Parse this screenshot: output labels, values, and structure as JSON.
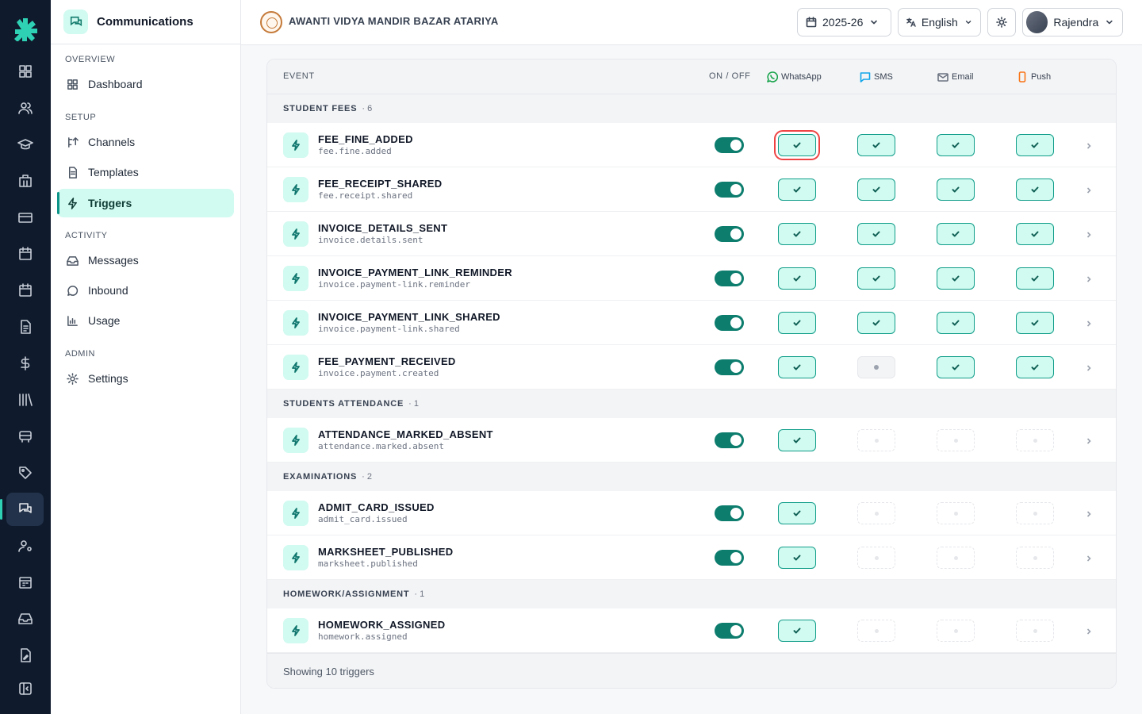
{
  "sidebar": {
    "title": "Communications",
    "sections": {
      "overview": "OVERVIEW",
      "setup": "SETUP",
      "activity": "ACTIVITY",
      "admin": "ADMIN"
    },
    "items": {
      "dashboard": "Dashboard",
      "channels": "Channels",
      "templates": "Templates",
      "triggers": "Triggers",
      "messages": "Messages",
      "inbound": "Inbound",
      "usage": "Usage",
      "settings": "Settings"
    },
    "active": "triggers"
  },
  "header": {
    "school_name": "AWANTI VIDYA MANDIR BAZAR ATARIYA",
    "year": "2025-26",
    "language": "English",
    "user": "Rajendra"
  },
  "table": {
    "columns": {
      "event": "EVENT",
      "onoff": "ON / OFF",
      "whatsapp": "WhatsApp",
      "sms": "SMS",
      "email": "Email",
      "push": "Push"
    },
    "groups": [
      {
        "name": "STUDENT FEES",
        "count": "· 6"
      },
      {
        "name": "STUDENTS ATTENDANCE",
        "count": "· 1"
      },
      {
        "name": "EXAMINATIONS",
        "count": "· 2"
      },
      {
        "name": "HOMEWORK/ASSIGNMENT",
        "count": "· 1"
      }
    ],
    "rows": [
      {
        "name": "FEE_FINE_ADDED",
        "key": "fee.fine.added",
        "enabled": true,
        "channels": [
          "on",
          "on",
          "on",
          "on"
        ]
      },
      {
        "name": "FEE_RECEIPT_SHARED",
        "key": "fee.receipt.shared",
        "enabled": true,
        "channels": [
          "on",
          "on",
          "on",
          "on"
        ]
      },
      {
        "name": "INVOICE_DETAILS_SENT",
        "key": "invoice.details.sent",
        "enabled": true,
        "channels": [
          "on",
          "on",
          "on",
          "on"
        ]
      },
      {
        "name": "INVOICE_PAYMENT_LINK_REMINDER",
        "key": "invoice.payment-link.reminder",
        "enabled": true,
        "channels": [
          "on",
          "on",
          "on",
          "on"
        ]
      },
      {
        "name": "INVOICE_PAYMENT_LINK_SHARED",
        "key": "invoice.payment-link.shared",
        "enabled": true,
        "channels": [
          "on",
          "on",
          "on",
          "on"
        ]
      },
      {
        "name": "FEE_PAYMENT_RECEIVED",
        "key": "invoice.payment.created",
        "enabled": true,
        "channels": [
          "on",
          "off",
          "on",
          "on"
        ]
      },
      {
        "name": "ATTENDANCE_MARKED_ABSENT",
        "key": "attendance.marked.absent",
        "enabled": true,
        "channels": [
          "on",
          "na",
          "na",
          "na"
        ]
      },
      {
        "name": "ADMIT_CARD_ISSUED",
        "key": "admit_card.issued",
        "enabled": true,
        "channels": [
          "on",
          "na",
          "na",
          "na"
        ]
      },
      {
        "name": "MARKSHEET_PUBLISHED",
        "key": "marksheet.published",
        "enabled": true,
        "channels": [
          "on",
          "na",
          "na",
          "na"
        ]
      },
      {
        "name": "HOMEWORK_ASSIGNED",
        "key": "homework.assigned",
        "enabled": true,
        "channels": [
          "on",
          "na",
          "na",
          "na"
        ]
      }
    ],
    "footer": "Showing 10 triggers"
  },
  "colors": {
    "accent": "#0d7d6e",
    "accent_light": "#d1faf0",
    "rail_bg": "#0f1b2d",
    "focus_ring": "#ef4444"
  }
}
